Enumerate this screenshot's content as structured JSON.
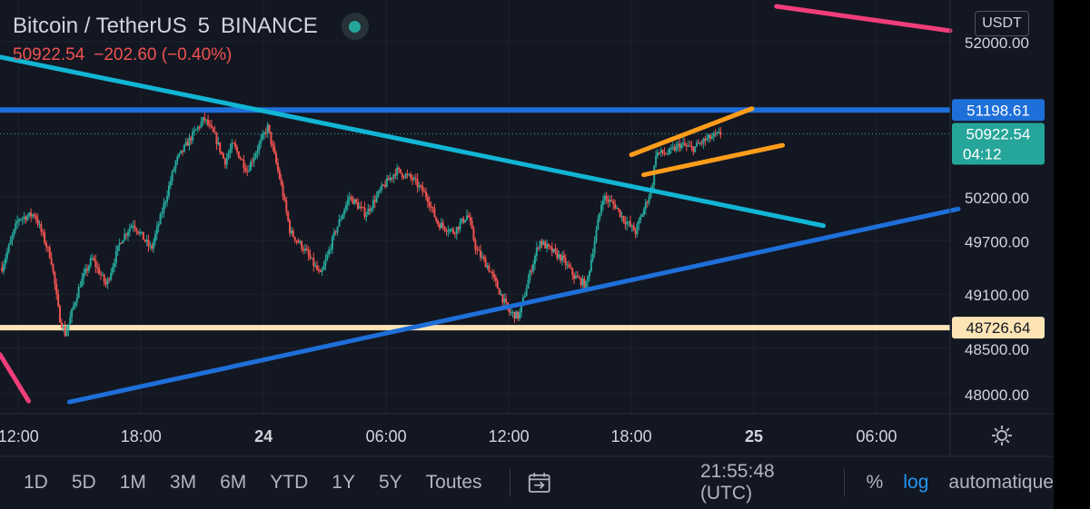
{
  "header": {
    "symbol": "Bitcoin / TetherUS",
    "interval": "5",
    "exchange": "BINANCE",
    "last_price": "50922.54",
    "change": "−202.60 (−0.40%)",
    "currency": "USDT"
  },
  "colors": {
    "background": "#131722",
    "up": "#26a69a",
    "down": "#ef5350",
    "grid": "#1e222d",
    "axis_text": "#d1d4dc",
    "resistance": "#1e6fd9",
    "support_pale": "#fde4b5",
    "trend_cyan": "#12b5d4",
    "trend_blue": "#1e6fd9",
    "channel_orange": "#ff9d1b",
    "trend_pink": "#f03e7a"
  },
  "chart_data": {
    "type": "candlestick",
    "y_axis": {
      "ticks": [
        52000,
        50200,
        49700,
        49100,
        48500,
        48000
      ],
      "tick_labels": [
        "52000.00",
        "50200.00",
        "49700.00",
        "49100.00",
        "48500.00",
        "48000.00"
      ]
    },
    "x_axis": {
      "tick_labels": [
        "12:00",
        "18:00",
        "24",
        "06:00",
        "12:00",
        "18:00",
        "25",
        "06:00"
      ],
      "tick_times_h": [
        12,
        18,
        24,
        30,
        36,
        42,
        48,
        54
      ],
      "range_h": [
        11.1,
        57.6
      ]
    },
    "price_labels": [
      {
        "value": 51198.61,
        "label": "51198.61",
        "color": "#1e6fd9",
        "text_color": "#ffffff"
      },
      {
        "value": 50922.54,
        "label": "50922.54",
        "sublabel": "04:12",
        "color": "#26a69a",
        "text_color": "#ffffff"
      },
      {
        "value": 48726.64,
        "label": "48726.64",
        "color": "#fde4b5",
        "text_color": "#131722"
      }
    ],
    "horizontal_lines": [
      {
        "value": 51198.61,
        "color": "#1e6fd9"
      },
      {
        "value": 48726.64,
        "color": "#fde4b5"
      }
    ],
    "trendlines": [
      {
        "name": "descending",
        "color": "#12b5d4",
        "p1": [
          11.1,
          51820
        ],
        "p2": [
          51.4,
          49870
        ]
      },
      {
        "name": "ascending",
        "color": "#1e6fd9",
        "p1": [
          14.5,
          47910
        ],
        "p2": [
          58.0,
          50060
        ]
      },
      {
        "name": "channel-upper",
        "color": "#ff9d1b",
        "p1": [
          42.0,
          50680
        ],
        "p2": [
          47.9,
          51215
        ]
      },
      {
        "name": "channel-lower",
        "color": "#ff9d1b",
        "p1": [
          42.6,
          50450
        ],
        "p2": [
          49.4,
          50790
        ]
      },
      {
        "name": "pink-top",
        "color": "#f03e7a",
        "p1": [
          49.1,
          52420
        ],
        "p2": [
          57.6,
          52130
        ]
      },
      {
        "name": "pink-bottom",
        "color": "#f03e7a",
        "p1": [
          11.1,
          48430
        ],
        "p2": [
          12.5,
          47920
        ]
      }
    ],
    "price_path": [
      [
        11.2,
        49400
      ],
      [
        12.0,
        49950
      ],
      [
        12.8,
        50000
      ],
      [
        13.6,
        49500
      ],
      [
        14.0,
        48850
      ],
      [
        14.3,
        48650
      ],
      [
        15.0,
        49200
      ],
      [
        15.6,
        49500
      ],
      [
        16.3,
        49200
      ],
      [
        17.0,
        49700
      ],
      [
        17.6,
        49900
      ],
      [
        18.5,
        49600
      ],
      [
        19.0,
        50000
      ],
      [
        19.7,
        50600
      ],
      [
        20.5,
        50900
      ],
      [
        21.1,
        51100
      ],
      [
        21.6,
        50900
      ],
      [
        22.1,
        50600
      ],
      [
        22.5,
        50800
      ],
      [
        23.2,
        50500
      ],
      [
        23.8,
        50800
      ],
      [
        24.2,
        51000
      ],
      [
        24.8,
        50400
      ],
      [
        25.3,
        49800
      ],
      [
        26.0,
        49600
      ],
      [
        26.8,
        49300
      ],
      [
        27.5,
        49800
      ],
      [
        28.2,
        50200
      ],
      [
        29.0,
        50000
      ],
      [
        29.8,
        50300
      ],
      [
        30.5,
        50500
      ],
      [
        31.3,
        50400
      ],
      [
        32.0,
        50200
      ],
      [
        32.5,
        49900
      ],
      [
        33.3,
        49800
      ],
      [
        34.0,
        50000
      ],
      [
        34.4,
        49600
      ],
      [
        35.0,
        49400
      ],
      [
        35.6,
        49100
      ],
      [
        36.0,
        48900
      ],
      [
        36.5,
        48850
      ],
      [
        37.0,
        49300
      ],
      [
        37.5,
        49700
      ],
      [
        38.0,
        49600
      ],
      [
        38.6,
        49500
      ],
      [
        39.2,
        49300
      ],
      [
        39.8,
        49200
      ],
      [
        40.2,
        49700
      ],
      [
        40.6,
        50200
      ],
      [
        41.2,
        50100
      ],
      [
        41.6,
        49950
      ],
      [
        42.2,
        49800
      ],
      [
        42.6,
        50050
      ],
      [
        43.0,
        50300
      ],
      [
        43.2,
        50700
      ],
      [
        43.8,
        50700
      ],
      [
        44.4,
        50800
      ],
      [
        45.0,
        50750
      ],
      [
        45.6,
        50850
      ],
      [
        46.1,
        50900
      ],
      [
        46.4,
        50922
      ]
    ]
  },
  "settings_icon": "gear-icon",
  "bottom_bar": {
    "timeframes": [
      "1D",
      "5D",
      "1M",
      "3M",
      "6M",
      "YTD",
      "1Y",
      "5Y",
      "Toutes"
    ],
    "compare_icon": "date-range-icon",
    "time": "21:55:48 (UTC)",
    "percent": "%",
    "log": "log",
    "auto": "automatique"
  }
}
